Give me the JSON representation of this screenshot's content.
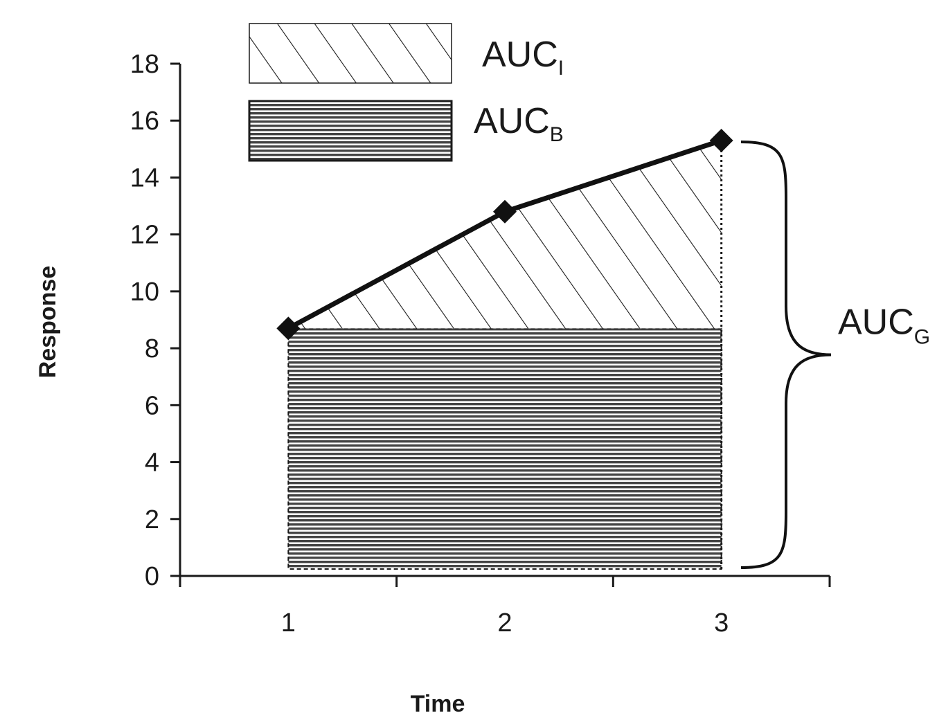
{
  "chart_data": {
    "type": "line",
    "xlabel": "Time",
    "ylabel": "Response",
    "x_ticks": [
      "1",
      "2",
      "3"
    ],
    "y_ticks": [
      "0",
      "2",
      "4",
      "6",
      "8",
      "10",
      "12",
      "14",
      "16",
      "18"
    ],
    "xlim": [
      0.5,
      3.5
    ],
    "ylim": [
      0,
      18
    ],
    "grid": false,
    "legend_position": "top-left",
    "series": [
      {
        "x": [
          1,
          2,
          3
        ],
        "values": [
          8.7,
          12.8,
          15.3
        ]
      }
    ],
    "baseline_value": 8.7,
    "legend": [
      {
        "base": "AUC",
        "sub": "I",
        "pattern": "diagonal-hatch"
      },
      {
        "base": "AUC",
        "sub": "B",
        "pattern": "horizontal-lines"
      }
    ],
    "brace_annotation": {
      "base": "AUC",
      "sub": "G"
    }
  }
}
